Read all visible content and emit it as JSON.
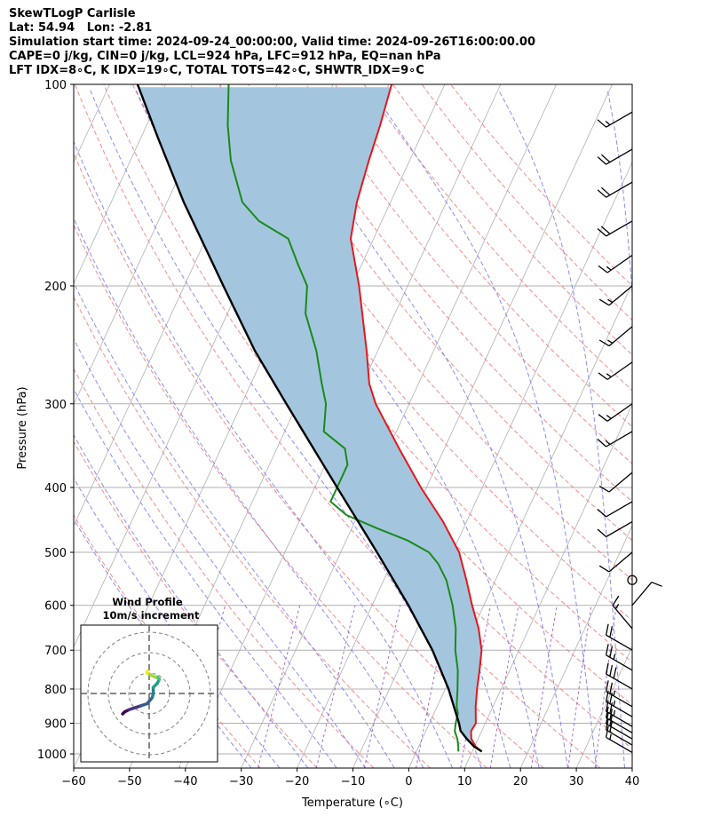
{
  "header": {
    "line1": "SkewTLogP Carlisle",
    "line2": "Lat: 54.94   Lon: -2.81",
    "line3": "Simulation start time: 2024-09-24_00:00:00, Valid time: 2024-09-26T16:00:00.00",
    "line4": "CAPE=0 j/kg, CIN=0 j/kg, LCL=924 hPa, LFC=912 hPa, EQ=nan hPa",
    "line5": "LFT IDX=8∘C, K IDX=19∘C, TOTAL TOTS=42∘C, SHWTR_IDX=9∘C"
  },
  "colors": {
    "temperature": "#e8161b",
    "dewpoint": "#1a8a1a",
    "parcel": "#000000",
    "fill": "#a3c6de",
    "dry_adiabat": "#f08080",
    "moist_adiabat": "#8080f0",
    "isotherm": "#b0b0b0",
    "mixing_ratio": "#9a5cc9"
  },
  "chart_data": {
    "type": "line",
    "title": "",
    "xlabel": "Temperature (∘C)",
    "ylabel": "Pressure (hPa)",
    "xlim": [
      -60,
      40
    ],
    "ylim": [
      1050,
      100
    ],
    "y_scale": "log",
    "x_ticks": [
      "−60",
      "−50",
      "−40",
      "−30",
      "−20",
      "−10",
      "0",
      "10",
      "20",
      "30",
      "40"
    ],
    "y_ticks": [
      "1000",
      "900",
      "800",
      "700",
      "600",
      "500",
      "400",
      "300",
      "200",
      "100"
    ],
    "series": [
      {
        "key": "temperature",
        "pressure": [
          992,
          975,
          950,
          925,
          900,
          850,
          800,
          750,
          700,
          650,
          600,
          550,
          500,
          450,
          400,
          350,
          300,
          280,
          250,
          200,
          170,
          150,
          130,
          115,
          100
        ],
        "values": [
          11.7,
          10.2,
          8.8,
          8.1,
          8.3,
          6.9,
          5.7,
          4.6,
          3.3,
          1.0,
          -2.1,
          -5.2,
          -8.8,
          -14.2,
          -21.0,
          -28.1,
          -36.0,
          -38.8,
          -42.0,
          -48.7,
          -54.1,
          -56.0,
          -57.3,
          -58.2,
          -59.5
        ]
      },
      {
        "key": "dewpoint",
        "pressure": [
          992,
          975,
          950,
          925,
          900,
          870,
          850,
          800,
          750,
          700,
          650,
          600,
          550,
          520,
          500,
          480,
          460,
          440,
          420,
          400,
          370,
          350,
          330,
          300,
          280,
          250,
          220,
          200,
          185,
          170,
          160,
          150,
          130,
          115,
          100
        ],
        "values": [
          7.5,
          7.1,
          6.3,
          5.2,
          4.7,
          4.3,
          3.5,
          2.2,
          0.7,
          -1.4,
          -3.1,
          -5.6,
          -8.8,
          -11.6,
          -14.2,
          -19.0,
          -25.6,
          -32.0,
          -36.0,
          -36.0,
          -36.0,
          -37.8,
          -43.0,
          -44.9,
          -47.3,
          -51.0,
          -56.0,
          -58.0,
          -61.6,
          -65.3,
          -72.0,
          -76.5,
          -82.0,
          -85.5,
          -88.7
        ]
      },
      {
        "key": "parcel",
        "pressure": [
          992,
          975,
          950,
          924,
          900,
          850,
          800,
          700,
          600,
          500,
          400,
          300,
          250,
          200,
          150,
          120,
          100
        ],
        "values": [
          11.7,
          9.9,
          8.0,
          6.2,
          5.3,
          3.0,
          0.6,
          -5.5,
          -13.5,
          -23.5,
          -36.0,
          -52.0,
          -62.0,
          -73.0,
          -87.0,
          -97.0,
          -105.0
        ]
      }
    ],
    "wind_barbs": {
      "pressure": [
        995,
        970,
        950,
        930,
        910,
        880,
        850,
        800,
        750,
        700,
        650,
        600,
        550,
        500,
        450,
        420,
        380,
        330,
        300,
        260,
        230,
        200,
        180,
        160,
        140,
        125,
        110
      ],
      "speed_kt": [
        15,
        20,
        20,
        20,
        25,
        25,
        25,
        30,
        25,
        20,
        15,
        10,
        0,
        10,
        10,
        10,
        10,
        15,
        15,
        15,
        15,
        15,
        15,
        20,
        20,
        20,
        15
      ],
      "direction_deg": [
        300,
        300,
        300,
        300,
        300,
        300,
        300,
        300,
        300,
        300,
        320,
        40,
        0,
        230,
        240,
        240,
        230,
        240,
        235,
        235,
        230,
        230,
        235,
        240,
        240,
        240,
        240
      ]
    },
    "hodograph": {
      "title": "Wind Profile",
      "subtitle": "10m/s increment",
      "u": [
        -13,
        -12,
        -10,
        -7,
        -4,
        -1,
        1.5,
        2,
        2,
        4,
        5,
        4,
        3,
        1,
        -1,
        -1
      ],
      "v": [
        -10,
        -9,
        -8,
        -7,
        -6,
        -5,
        -2,
        0,
        3,
        5,
        7,
        8,
        8,
        9,
        10,
        11
      ]
    }
  }
}
